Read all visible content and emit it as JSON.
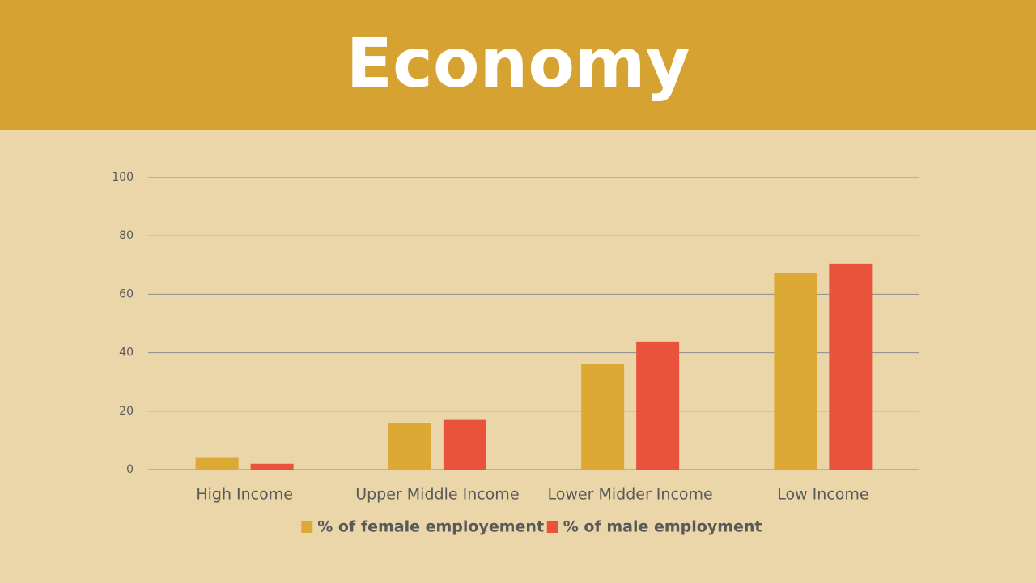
{
  "chart_data": {
    "type": "bar",
    "title": "Economy",
    "categories": [
      "High Income",
      "Upper Middle Income",
      "Lower Midder Income",
      "Low Income"
    ],
    "series": [
      {
        "name": "% of female employement",
        "color": "#dba934",
        "values": [
          4,
          16,
          36.3,
          67.3
        ]
      },
      {
        "name": "% of male employment",
        "color": "#e9533c",
        "values": [
          2,
          17,
          43.8,
          70.4
        ]
      }
    ],
    "ylim": [
      0,
      100
    ],
    "yticks": [
      0,
      20,
      40,
      60,
      80,
      100
    ],
    "grid": true,
    "legend": "bottom"
  }
}
